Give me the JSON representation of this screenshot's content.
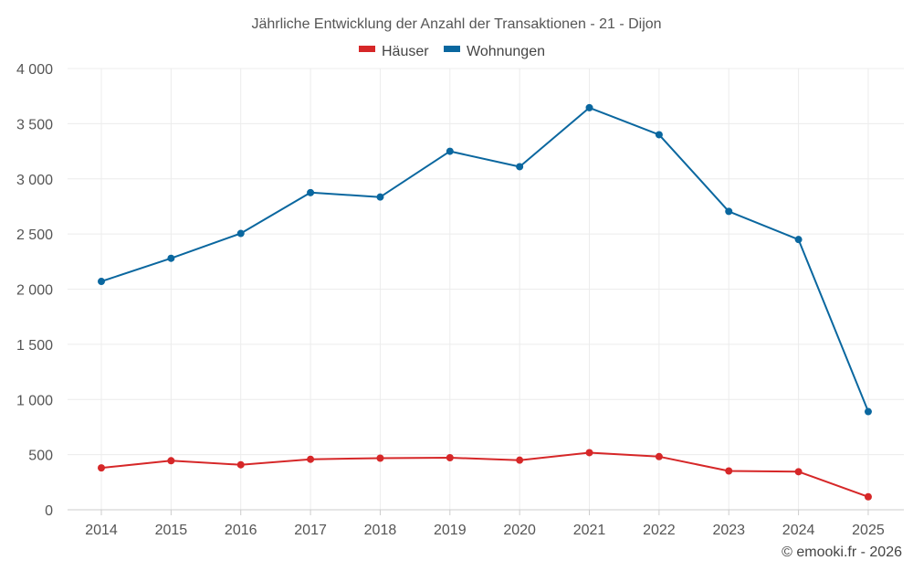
{
  "chart_data": {
    "type": "line",
    "title": "Jährliche Entwicklung der Anzahl der Transaktionen - 21 - Dijon",
    "categories": [
      "2014",
      "2015",
      "2016",
      "2017",
      "2018",
      "2019",
      "2020",
      "2021",
      "2022",
      "2023",
      "2024",
      "2025"
    ],
    "series": [
      {
        "name": "Häuser",
        "color": "#d62728",
        "values": [
          380,
          445,
          408,
          458,
          468,
          472,
          450,
          518,
          482,
          352,
          345,
          118
        ]
      },
      {
        "name": "Wohnungen",
        "color": "#0a679f",
        "values": [
          2070,
          2280,
          2505,
          2875,
          2835,
          3250,
          3110,
          3645,
          3400,
          2705,
          2450,
          890
        ]
      }
    ],
    "ylim": [
      0,
      4000
    ],
    "yticks": [
      0,
      500,
      1000,
      1500,
      2000,
      2500,
      3000,
      3500,
      4000
    ],
    "ytick_labels": [
      "0",
      "500",
      "1 000",
      "1 500",
      "2 000",
      "2 500",
      "3 000",
      "3 500",
      "4 000"
    ],
    "xlabel": "",
    "ylabel": "",
    "legend_position": "top-center",
    "grid": true
  },
  "credit": "© emooki.fr - 2026"
}
